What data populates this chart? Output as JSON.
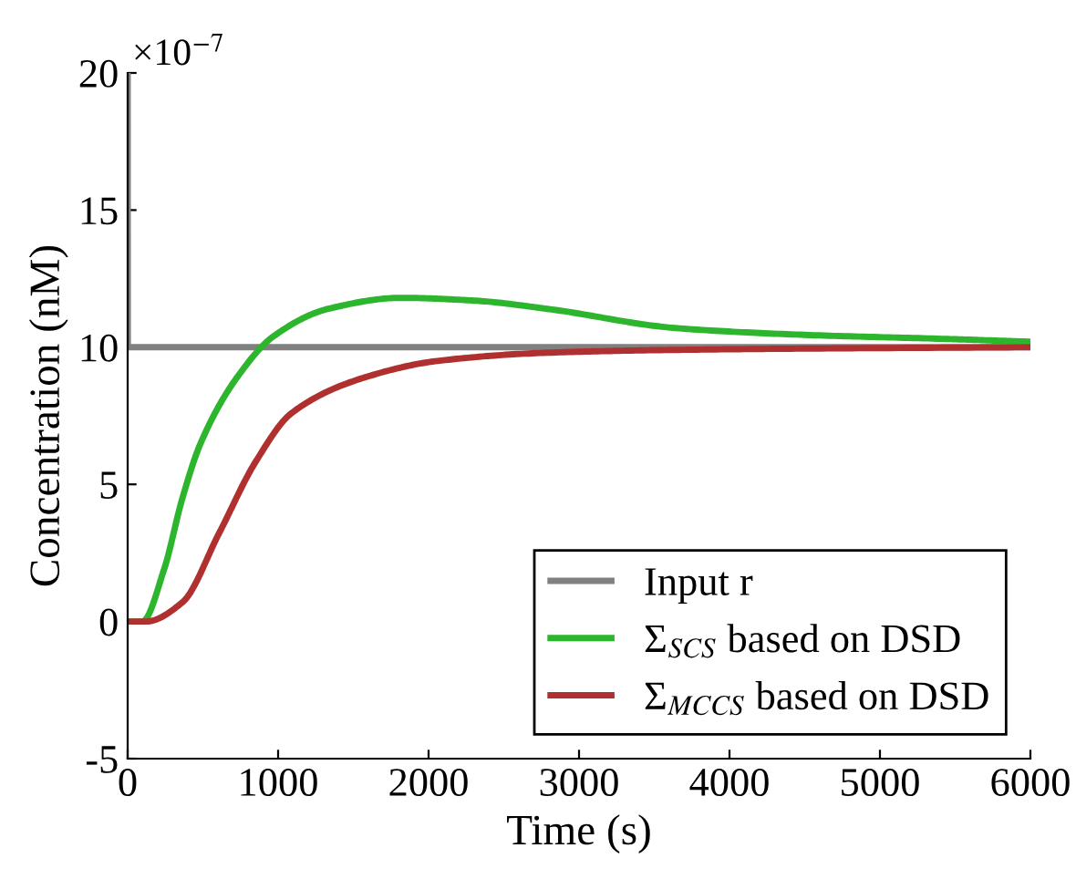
{
  "chart_data": {
    "type": "line",
    "xlabel": "Time (s)",
    "ylabel": "Concentration (nM)",
    "annotations": [
      "×10$^{−7}$"
    ],
    "xlim": [
      0,
      6000
    ],
    "xticks": [
      0,
      1000,
      2000,
      3000,
      4000,
      5000,
      6000
    ],
    "ylim": [
      -5,
      20
    ],
    "yticks": [
      -5,
      0,
      5,
      10,
      15,
      20
    ],
    "grid": false,
    "legend": "bottom right",
    "series": [
      {
        "name": "Input r",
        "color": "#808080",
        "x": [
          0,
          1,
          6000
        ],
        "values": [
          20,
          10,
          10
        ]
      },
      {
        "name": "Σ$_{SCS}$ based on DSD",
        "color": "#2db52d",
        "x": [
          0,
          97,
          242,
          364,
          485,
          727,
          970,
          1333,
          1818,
          2303,
          2788,
          3640,
          4500,
          5450,
          6000
        ],
        "values": [
          0,
          0,
          1.9,
          4.5,
          6.5,
          8.9,
          10.4,
          11.4,
          11.8,
          11.7,
          11.4,
          10.7,
          10.45,
          10.3,
          10.2
        ]
      },
      {
        "name": "Σ$_{MCCS}$ based on DSD",
        "color": "#b03030",
        "x": [
          0,
          121,
          364,
          606,
          848,
          1090,
          1576,
          2060,
          2788,
          3600,
          4500,
          6000
        ],
        "values": [
          0,
          0,
          0.7,
          3.2,
          5.8,
          7.6,
          8.9,
          9.5,
          9.8,
          9.9,
          9.95,
          10
        ]
      }
    ]
  }
}
